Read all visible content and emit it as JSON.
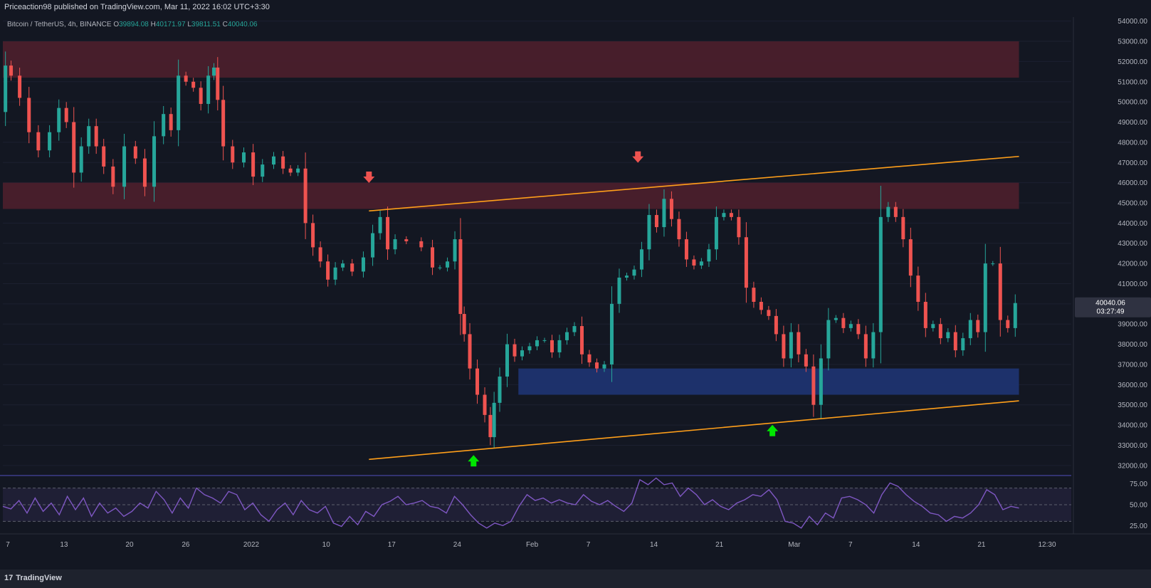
{
  "header": {
    "published": "Priceaction98 published on TradingView.com, Mar 11, 2022 16:02 UTC+3:30"
  },
  "symbol_info": {
    "name": "Bitcoin / TetherUS, 4h, BINANCE",
    "o_label": "O",
    "o": "39894.08",
    "h_label": "H",
    "h": "40171.97",
    "l_label": "L",
    "l": "39811.51",
    "c_label": "C",
    "c": "40040.06"
  },
  "footer": {
    "logo_text": "TradingView",
    "logo_mark": "17"
  },
  "colors": {
    "background": "#131722",
    "up": "#26a69a",
    "down": "#ef5350",
    "resistance_zone": "#4a1f2c",
    "support_zone": "#1e3370",
    "trendline": "#ff9f1a",
    "rsi_line": "#7e57c2",
    "arrow_down": "#ef5350",
    "arrow_up": "#00e600"
  },
  "chart_data": {
    "type": "candlestick",
    "title": "Bitcoin / TetherUS, 4h, BINANCE",
    "price_axis": {
      "ticks": [
        "54000.00",
        "53000.00",
        "52000.00",
        "51000.00",
        "50000.00",
        "49000.00",
        "48000.00",
        "47000.00",
        "46000.00",
        "45000.00",
        "44000.00",
        "43000.00",
        "42000.00",
        "41000.00",
        "40000.00",
        "39000.00",
        "38000.00",
        "37000.00",
        "36000.00",
        "35000.00",
        "34000.00",
        "33000.00",
        "32000.00"
      ],
      "range": [
        31500,
        54200
      ]
    },
    "last_price": {
      "value": "40040.06",
      "countdown": "03:27:49"
    },
    "time_axis": {
      "labels": [
        "7",
        "13",
        "20",
        "26",
        "2022",
        "10",
        "17",
        "24",
        "Feb",
        "7",
        "14",
        "21",
        "Mar",
        "7",
        "14",
        "21",
        "12:30"
      ],
      "day_index": [
        0,
        6,
        13,
        19,
        26,
        34,
        41,
        48,
        56,
        62,
        69,
        76,
        84,
        90,
        97,
        104,
        111
      ],
      "range": [
        0,
        114
      ]
    },
    "price_path": [
      [
        0,
        49500
      ],
      [
        0.7,
        51800
      ],
      [
        1.5,
        51300
      ],
      [
        3,
        50200
      ],
      [
        4,
        48500
      ],
      [
        5.5,
        47600
      ],
      [
        7,
        48500
      ],
      [
        8,
        49700
      ],
      [
        9,
        49000
      ],
      [
        10,
        46500
      ],
      [
        11,
        47800
      ],
      [
        12,
        48800
      ],
      [
        13,
        47800
      ],
      [
        14,
        46800
      ],
      [
        15.5,
        45800
      ],
      [
        17,
        47800
      ],
      [
        18.5,
        47200
      ],
      [
        19.5,
        45800
      ],
      [
        21,
        48300
      ],
      [
        22,
        49400
      ],
      [
        23,
        48600
      ],
      [
        24,
        51300
      ],
      [
        25,
        51000
      ],
      [
        26,
        50700
      ],
      [
        27,
        49900
      ],
      [
        28,
        51300
      ],
      [
        28.5,
        51700
      ],
      [
        29,
        50100
      ],
      [
        30,
        47800
      ],
      [
        31.5,
        47000
      ],
      [
        33,
        47500
      ],
      [
        34,
        46300
      ],
      [
        35.5,
        46900
      ],
      [
        37,
        47300
      ],
      [
        38,
        46700
      ],
      [
        39,
        46500
      ],
      [
        40,
        46700
      ],
      [
        41,
        44000
      ],
      [
        42,
        42800
      ],
      [
        43,
        42100
      ],
      [
        44,
        41200
      ],
      [
        45,
        41800
      ],
      [
        46,
        42000
      ],
      [
        47.5,
        41600
      ],
      [
        49,
        42300
      ],
      [
        50,
        43500
      ],
      [
        51,
        44300
      ],
      [
        52,
        42700
      ],
      [
        53,
        43200
      ],
      [
        55,
        43100
      ],
      [
        57,
        42800
      ],
      [
        58,
        41800
      ],
      [
        59,
        41800
      ],
      [
        60,
        42100
      ],
      [
        61,
        43200
      ],
      [
        61.5,
        39500
      ],
      [
        62,
        38500
      ],
      [
        63,
        36800
      ],
      [
        64,
        35500
      ],
      [
        65,
        34500
      ],
      [
        65.5,
        33400
      ],
      [
        66,
        35100
      ],
      [
        67,
        36400
      ],
      [
        68,
        38000
      ],
      [
        69,
        37400
      ],
      [
        70,
        37700
      ],
      [
        71,
        37900
      ],
      [
        72,
        38200
      ],
      [
        73,
        38200
      ],
      [
        74,
        37600
      ],
      [
        75,
        38200
      ],
      [
        76,
        38600
      ],
      [
        77,
        38900
      ],
      [
        78,
        37500
      ],
      [
        79,
        37100
      ],
      [
        80,
        36800
      ],
      [
        81,
        37000
      ],
      [
        82,
        40000
      ],
      [
        83,
        41300
      ],
      [
        84,
        41400
      ],
      [
        85,
        41700
      ],
      [
        86,
        42700
      ],
      [
        87,
        44400
      ],
      [
        88,
        43800
      ],
      [
        89,
        45200
      ],
      [
        90,
        44200
      ],
      [
        91,
        43200
      ],
      [
        92,
        42200
      ],
      [
        93,
        41900
      ],
      [
        94,
        42100
      ],
      [
        95,
        42700
      ],
      [
        96,
        44300
      ],
      [
        97,
        44500
      ],
      [
        98,
        44300
      ],
      [
        99,
        43300
      ],
      [
        100,
        40800
      ],
      [
        101,
        40100
      ],
      [
        102,
        39700
      ],
      [
        103,
        39400
      ],
      [
        104,
        38500
      ],
      [
        105,
        37300
      ],
      [
        106,
        38600
      ],
      [
        107,
        37500
      ],
      [
        108,
        36900
      ],
      [
        109,
        35000
      ],
      [
        110,
        37300
      ],
      [
        111,
        39200
      ],
      [
        112,
        39300
      ],
      [
        113,
        38800
      ],
      [
        114,
        39000
      ],
      [
        115,
        38500
      ],
      [
        116,
        37300
      ],
      [
        117,
        38600
      ],
      [
        118,
        44300
      ],
      [
        119,
        44800
      ],
      [
        120,
        44300
      ],
      [
        121,
        43200
      ],
      [
        122,
        41400
      ],
      [
        123,
        40100
      ],
      [
        124,
        38800
      ],
      [
        125,
        39000
      ],
      [
        126,
        38300
      ],
      [
        127,
        38600
      ],
      [
        128,
        37700
      ],
      [
        129,
        38300
      ],
      [
        130,
        39200
      ],
      [
        131,
        38600
      ],
      [
        132,
        42000
      ],
      [
        133,
        42000
      ],
      [
        134,
        39200
      ],
      [
        135,
        38800
      ],
      [
        136,
        40040
      ]
    ],
    "zones": [
      {
        "name": "upper-resistance",
        "from": 51200,
        "to": 53000,
        "x_start": 0,
        "x_end": 136,
        "color": "#4a1f2c"
      },
      {
        "name": "mid-resistance",
        "from": 44700,
        "to": 46000,
        "x_start": 0,
        "x_end": 136,
        "color": "#4a1f2c"
      },
      {
        "name": "support",
        "from": 35500,
        "to": 36800,
        "x_start": 69,
        "x_end": 136,
        "color": "#1e3370"
      }
    ],
    "trendlines": [
      {
        "name": "upper-channel",
        "x1": 49,
        "y1": 44600,
        "x2": 136,
        "y2": 47300
      },
      {
        "name": "lower-channel",
        "x1": 49,
        "y1": 32300,
        "x2": 136,
        "y2": 35200
      }
    ],
    "markers": [
      {
        "type": "down",
        "x": 49,
        "price": 46200
      },
      {
        "type": "down",
        "x": 85,
        "price": 47200
      },
      {
        "type": "up",
        "x": 63,
        "price": 32300
      },
      {
        "type": "up",
        "x": 103,
        "price": 33800
      }
    ],
    "rsi": {
      "ticks": [
        "75.00",
        "50.00",
        "25.00"
      ],
      "levels": [
        70,
        50,
        30
      ],
      "range": [
        15,
        85
      ],
      "path": [
        [
          0,
          48
        ],
        [
          1,
          45
        ],
        [
          2,
          55
        ],
        [
          3,
          40
        ],
        [
          4,
          58
        ],
        [
          5,
          42
        ],
        [
          6,
          52
        ],
        [
          7,
          38
        ],
        [
          8,
          60
        ],
        [
          9,
          44
        ],
        [
          10,
          58
        ],
        [
          11,
          36
        ],
        [
          12,
          52
        ],
        [
          13,
          40
        ],
        [
          14,
          46
        ],
        [
          15,
          36
        ],
        [
          16,
          42
        ],
        [
          17,
          52
        ],
        [
          18,
          46
        ],
        [
          19,
          66
        ],
        [
          20,
          56
        ],
        [
          21,
          40
        ],
        [
          22,
          58
        ],
        [
          23,
          46
        ],
        [
          24,
          70
        ],
        [
          25,
          62
        ],
        [
          26,
          58
        ],
        [
          27,
          52
        ],
        [
          28,
          66
        ],
        [
          29,
          62
        ],
        [
          30,
          44
        ],
        [
          31,
          52
        ],
        [
          32,
          38
        ],
        [
          33,
          30
        ],
        [
          34,
          44
        ],
        [
          35,
          52
        ],
        [
          36,
          38
        ],
        [
          37,
          55
        ],
        [
          38,
          44
        ],
        [
          39,
          40
        ],
        [
          40,
          48
        ],
        [
          41,
          28
        ],
        [
          42,
          24
        ],
        [
          43,
          36
        ],
        [
          44,
          26
        ],
        [
          45,
          42
        ],
        [
          46,
          36
        ],
        [
          47,
          50
        ],
        [
          48,
          54
        ],
        [
          49,
          60
        ],
        [
          50,
          50
        ],
        [
          51,
          52
        ],
        [
          52,
          55
        ],
        [
          53,
          48
        ],
        [
          54,
          46
        ],
        [
          55,
          40
        ],
        [
          56,
          60
        ],
        [
          57,
          50
        ],
        [
          58,
          38
        ],
        [
          59,
          28
        ],
        [
          60,
          22
        ],
        [
          61,
          28
        ],
        [
          62,
          25
        ],
        [
          63,
          30
        ],
        [
          64,
          48
        ],
        [
          65,
          62
        ],
        [
          66,
          55
        ],
        [
          67,
          58
        ],
        [
          68,
          52
        ],
        [
          69,
          56
        ],
        [
          70,
          52
        ],
        [
          71,
          50
        ],
        [
          72,
          62
        ],
        [
          73,
          54
        ],
        [
          74,
          50
        ],
        [
          75,
          55
        ],
        [
          76,
          48
        ],
        [
          77,
          42
        ],
        [
          78,
          52
        ],
        [
          79,
          80
        ],
        [
          80,
          74
        ],
        [
          81,
          82
        ],
        [
          82,
          74
        ],
        [
          83,
          76
        ],
        [
          84,
          60
        ],
        [
          85,
          70
        ],
        [
          86,
          62
        ],
        [
          87,
          50
        ],
        [
          88,
          56
        ],
        [
          89,
          48
        ],
        [
          90,
          44
        ],
        [
          91,
          52
        ],
        [
          92,
          56
        ],
        [
          93,
          62
        ],
        [
          94,
          60
        ],
        [
          95,
          68
        ],
        [
          96,
          56
        ],
        [
          97,
          30
        ],
        [
          98,
          28
        ],
        [
          99,
          22
        ],
        [
          100,
          36
        ],
        [
          101,
          26
        ],
        [
          102,
          40
        ],
        [
          103,
          34
        ],
        [
          104,
          58
        ],
        [
          105,
          60
        ],
        [
          106,
          56
        ],
        [
          107,
          50
        ],
        [
          108,
          40
        ],
        [
          109,
          62
        ],
        [
          110,
          76
        ],
        [
          111,
          72
        ],
        [
          112,
          62
        ],
        [
          113,
          54
        ],
        [
          114,
          48
        ],
        [
          115,
          40
        ],
        [
          116,
          38
        ],
        [
          117,
          30
        ],
        [
          118,
          36
        ],
        [
          119,
          34
        ],
        [
          120,
          40
        ],
        [
          121,
          50
        ],
        [
          122,
          68
        ],
        [
          123,
          62
        ],
        [
          124,
          44
        ],
        [
          125,
          48
        ],
        [
          126,
          46
        ]
      ]
    }
  }
}
